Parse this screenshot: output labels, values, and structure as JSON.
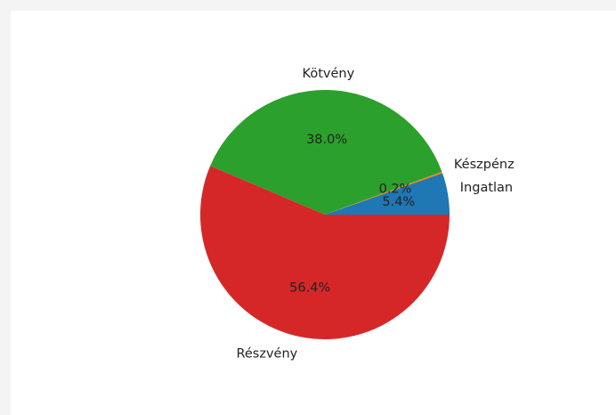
{
  "chart_data": {
    "type": "pie",
    "categories": [
      "Ingatlan",
      "Készpénz",
      "Kötvény",
      "Részvény"
    ],
    "values": [
      5.4,
      0.2,
      38.0,
      56.4
    ],
    "pct_labels": [
      "5.4%",
      "0.2%",
      "38.0%",
      "56.4%"
    ],
    "colors": [
      "#1f77b4",
      "#ff7f0e",
      "#2ca02c",
      "#d62728"
    ],
    "start_angle_deg": 0,
    "direction": "counterclockwise",
    "title": ""
  }
}
